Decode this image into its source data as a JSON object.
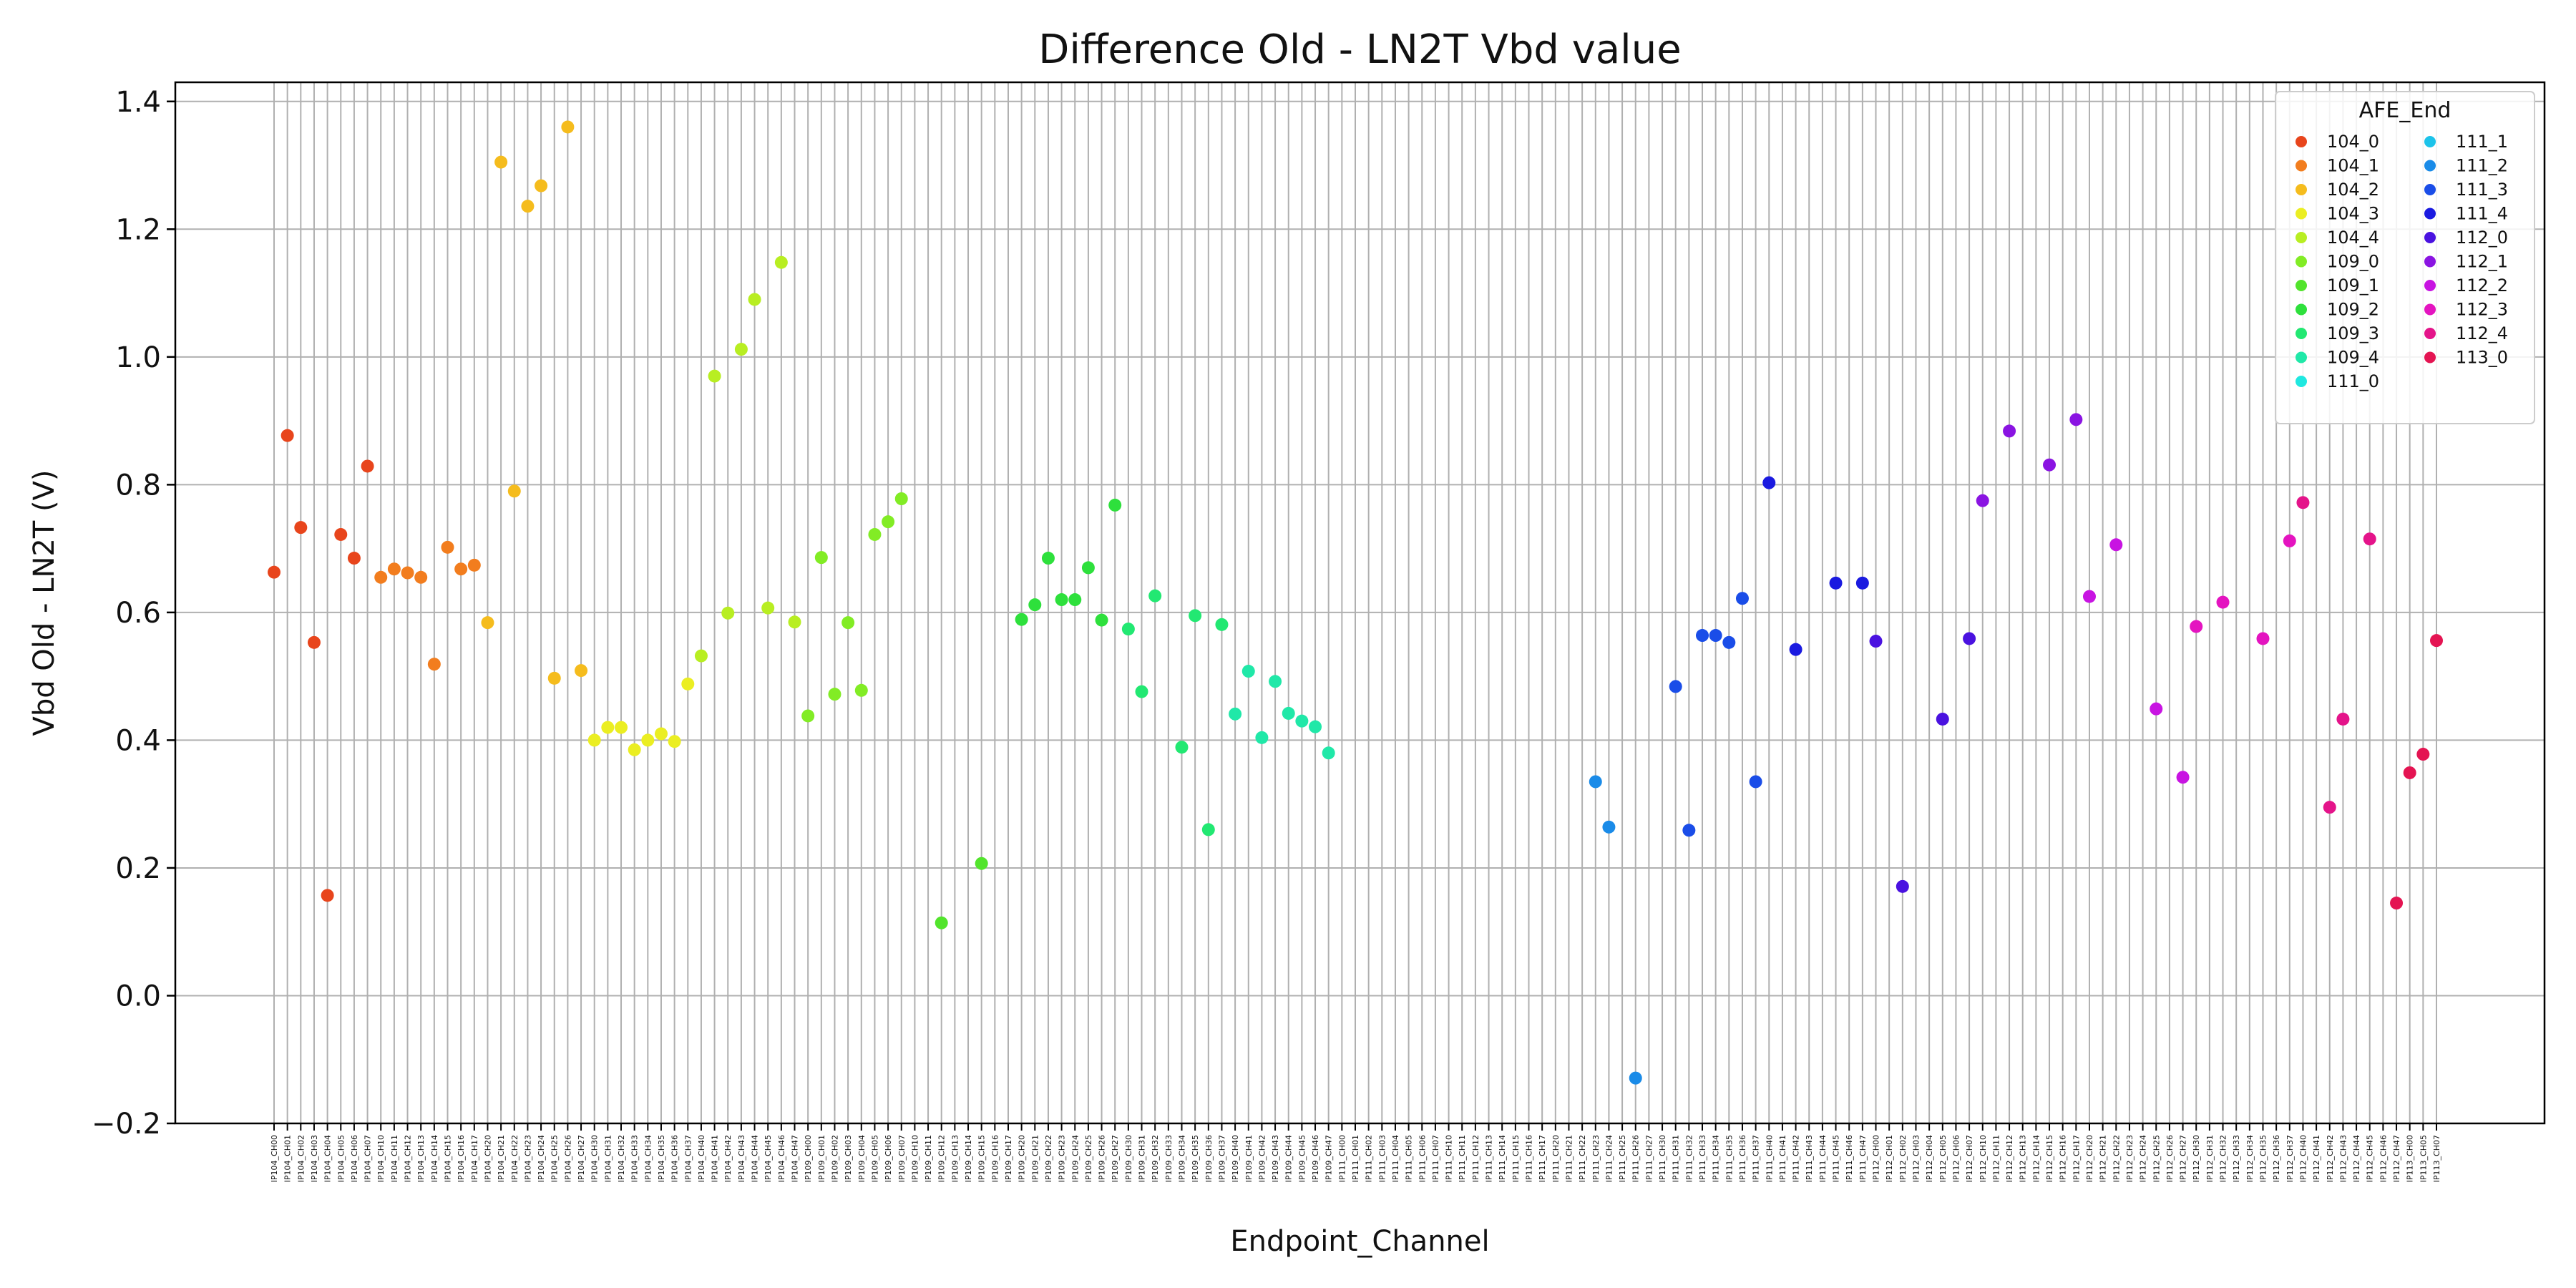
{
  "chart_data": {
    "type": "scatter",
    "title": "Difference Old - LN2T Vbd value",
    "xlabel": "Endpoint_Channel",
    "ylabel": "Vbd Old - LN2T (V)",
    "ylim": [
      -0.2,
      1.43
    ],
    "yticks": [
      "−0.2",
      "0.0",
      "0.2",
      "0.4",
      "0.6",
      "0.8",
      "1.0",
      "1.2",
      "1.4"
    ],
    "ytick_values": [
      -0.2,
      0.0,
      0.2,
      0.4,
      0.6,
      0.8,
      1.0,
      1.2,
      1.4
    ],
    "grid": true,
    "legend": {
      "title": "AFE_End",
      "placement": "top-right",
      "columns": 2
    },
    "categories": [
      "IP104_CH00",
      "IP104_CH01",
      "IP104_CH02",
      "IP104_CH03",
      "IP104_CH04",
      "IP104_CH05",
      "IP104_CH06",
      "IP104_CH07",
      "IP104_CH10",
      "IP104_CH11",
      "IP104_CH12",
      "IP104_CH13",
      "IP104_CH14",
      "IP104_CH15",
      "IP104_CH16",
      "IP104_CH17",
      "IP104_CH20",
      "IP104_CH21",
      "IP104_CH22",
      "IP104_CH23",
      "IP104_CH24",
      "IP104_CH25",
      "IP104_CH26",
      "IP104_CH27",
      "IP104_CH30",
      "IP104_CH31",
      "IP104_CH32",
      "IP104_CH33",
      "IP104_CH34",
      "IP104_CH35",
      "IP104_CH36",
      "IP104_CH37",
      "IP104_CH40",
      "IP104_CH41",
      "IP104_CH42",
      "IP104_CH43",
      "IP104_CH44",
      "IP104_CH45",
      "IP104_CH46",
      "IP104_CH47",
      "IP109_CH00",
      "IP109_CH01",
      "IP109_CH02",
      "IP109_CH03",
      "IP109_CH04",
      "IP109_CH05",
      "IP109_CH06",
      "IP109_CH07",
      "IP109_CH10",
      "IP109_CH11",
      "IP109_CH12",
      "IP109_CH13",
      "IP109_CH14",
      "IP109_CH15",
      "IP109_CH16",
      "IP109_CH17",
      "IP109_CH20",
      "IP109_CH21",
      "IP109_CH22",
      "IP109_CH23",
      "IP109_CH24",
      "IP109_CH25",
      "IP109_CH26",
      "IP109_CH27",
      "IP109_CH30",
      "IP109_CH31",
      "IP109_CH32",
      "IP109_CH33",
      "IP109_CH34",
      "IP109_CH35",
      "IP109_CH36",
      "IP109_CH37",
      "IP109_CH40",
      "IP109_CH41",
      "IP109_CH42",
      "IP109_CH43",
      "IP109_CH44",
      "IP109_CH45",
      "IP109_CH46",
      "IP109_CH47",
      "IP111_CH00",
      "IP111_CH01",
      "IP111_CH02",
      "IP111_CH03",
      "IP111_CH04",
      "IP111_CH05",
      "IP111_CH06",
      "IP111_CH07",
      "IP111_CH10",
      "IP111_CH11",
      "IP111_CH12",
      "IP111_CH13",
      "IP111_CH14",
      "IP111_CH15",
      "IP111_CH16",
      "IP111_CH17",
      "IP111_CH20",
      "IP111_CH21",
      "IP111_CH22",
      "IP111_CH23",
      "IP111_CH24",
      "IP111_CH25",
      "IP111_CH26",
      "IP111_CH27",
      "IP111_CH30",
      "IP111_CH31",
      "IP111_CH32",
      "IP111_CH33",
      "IP111_CH34",
      "IP111_CH35",
      "IP111_CH36",
      "IP111_CH37",
      "IP111_CH40",
      "IP111_CH41",
      "IP111_CH42",
      "IP111_CH43",
      "IP111_CH44",
      "IP111_CH45",
      "IP111_CH46",
      "IP111_CH47",
      "IP112_CH00",
      "IP112_CH01",
      "IP112_CH02",
      "IP112_CH03",
      "IP112_CH04",
      "IP112_CH05",
      "IP112_CH06",
      "IP112_CH07",
      "IP112_CH10",
      "IP112_CH11",
      "IP112_CH12",
      "IP112_CH13",
      "IP112_CH14",
      "IP112_CH15",
      "IP112_CH16",
      "IP112_CH17",
      "IP112_CH20",
      "IP112_CH21",
      "IP112_CH22",
      "IP112_CH23",
      "IP112_CH24",
      "IP112_CH25",
      "IP112_CH26",
      "IP112_CH27",
      "IP112_CH30",
      "IP112_CH31",
      "IP112_CH32",
      "IP112_CH33",
      "IP112_CH34",
      "IP112_CH35",
      "IP112_CH36",
      "IP112_CH37",
      "IP112_CH40",
      "IP112_CH41",
      "IP112_CH42",
      "IP112_CH43",
      "IP112_CH44",
      "IP112_CH45",
      "IP112_CH46",
      "IP112_CH47",
      "IP113_CH00",
      "IP113_CH05",
      "IP113_CH07"
    ],
    "series": [
      {
        "name": "104_0",
        "color": "#e8451c",
        "points": [
          {
            "x": "IP104_CH00",
            "y": 0.663
          },
          {
            "x": "IP104_CH01",
            "y": 0.877
          },
          {
            "x": "IP104_CH02",
            "y": 0.733
          },
          {
            "x": "IP104_CH03",
            "y": 0.553
          },
          {
            "x": "IP104_CH04",
            "y": 0.157
          },
          {
            "x": "IP104_CH05",
            "y": 0.722
          },
          {
            "x": "IP104_CH06",
            "y": 0.685
          },
          {
            "x": "IP104_CH07",
            "y": 0.829
          }
        ]
      },
      {
        "name": "104_1",
        "color": "#f27d1e",
        "points": [
          {
            "x": "IP104_CH10",
            "y": 0.655
          },
          {
            "x": "IP104_CH11",
            "y": 0.668
          },
          {
            "x": "IP104_CH12",
            "y": 0.662
          },
          {
            "x": "IP104_CH13",
            "y": 0.655
          },
          {
            "x": "IP104_CH14",
            "y": 0.519
          },
          {
            "x": "IP104_CH15",
            "y": 0.702
          },
          {
            "x": "IP104_CH16",
            "y": 0.668
          },
          {
            "x": "IP104_CH17",
            "y": 0.674
          }
        ]
      },
      {
        "name": "104_2",
        "color": "#f5bc1d",
        "points": [
          {
            "x": "IP104_CH20",
            "y": 0.584
          },
          {
            "x": "IP104_CH21",
            "y": 1.305
          },
          {
            "x": "IP104_CH22",
            "y": 0.79
          },
          {
            "x": "IP104_CH23",
            "y": 1.236
          },
          {
            "x": "IP104_CH24",
            "y": 1.268
          },
          {
            "x": "IP104_CH25",
            "y": 0.497
          },
          {
            "x": "IP104_CH26",
            "y": 1.36
          },
          {
            "x": "IP104_CH27",
            "y": 0.509
          }
        ]
      },
      {
        "name": "104_3",
        "color": "#ebee22",
        "points": [
          {
            "x": "IP104_CH30",
            "y": 0.4
          },
          {
            "x": "IP104_CH31",
            "y": 0.42
          },
          {
            "x": "IP104_CH32",
            "y": 0.42
          },
          {
            "x": "IP104_CH33",
            "y": 0.385
          },
          {
            "x": "IP104_CH34",
            "y": 0.4
          },
          {
            "x": "IP104_CH35",
            "y": 0.41
          },
          {
            "x": "IP104_CH36",
            "y": 0.398
          },
          {
            "x": "IP104_CH37",
            "y": 0.488
          }
        ]
      },
      {
        "name": "104_4",
        "color": "#b8ee22",
        "points": [
          {
            "x": "IP104_CH40",
            "y": 0.532
          },
          {
            "x": "IP104_CH41",
            "y": 0.97
          },
          {
            "x": "IP104_CH42",
            "y": 0.599
          },
          {
            "x": "IP104_CH43",
            "y": 1.012
          },
          {
            "x": "IP104_CH44",
            "y": 1.09
          },
          {
            "x": "IP104_CH45",
            "y": 0.607
          },
          {
            "x": "IP104_CH46",
            "y": 1.148
          },
          {
            "x": "IP104_CH47",
            "y": 0.585
          }
        ]
      },
      {
        "name": "109_0",
        "color": "#82ec25",
        "points": [
          {
            "x": "IP109_CH00",
            "y": 0.438
          },
          {
            "x": "IP109_CH01",
            "y": 0.686
          },
          {
            "x": "IP109_CH02",
            "y": 0.472
          },
          {
            "x": "IP109_CH03",
            "y": 0.584
          },
          {
            "x": "IP109_CH04",
            "y": 0.478
          },
          {
            "x": "IP109_CH05",
            "y": 0.722
          },
          {
            "x": "IP109_CH06",
            "y": 0.742
          },
          {
            "x": "IP109_CH07",
            "y": 0.778
          }
        ]
      },
      {
        "name": "109_1",
        "color": "#52e42c",
        "points": [
          {
            "x": "IP109_CH12",
            "y": 0.114
          },
          {
            "x": "IP109_CH15",
            "y": 0.207
          }
        ]
      },
      {
        "name": "109_2",
        "color": "#2ee03c",
        "points": [
          {
            "x": "IP109_CH20",
            "y": 0.589
          },
          {
            "x": "IP109_CH21",
            "y": 0.612
          },
          {
            "x": "IP109_CH22",
            "y": 0.685
          },
          {
            "x": "IP109_CH23",
            "y": 0.62
          },
          {
            "x": "IP109_CH24",
            "y": 0.62
          },
          {
            "x": "IP109_CH25",
            "y": 0.67
          },
          {
            "x": "IP109_CH26",
            "y": 0.588
          },
          {
            "x": "IP109_CH27",
            "y": 0.768
          }
        ]
      },
      {
        "name": "109_3",
        "color": "#22e872",
        "points": [
          {
            "x": "IP109_CH30",
            "y": 0.574
          },
          {
            "x": "IP109_CH31",
            "y": 0.476
          },
          {
            "x": "IP109_CH32",
            "y": 0.626
          },
          {
            "x": "IP109_CH34",
            "y": 0.389
          },
          {
            "x": "IP109_CH35",
            "y": 0.595
          },
          {
            "x": "IP109_CH36",
            "y": 0.26
          },
          {
            "x": "IP109_CH37",
            "y": 0.581
          }
        ]
      },
      {
        "name": "109_4",
        "color": "#20e8a8",
        "points": [
          {
            "x": "IP109_CH40",
            "y": 0.441
          },
          {
            "x": "IP109_CH41",
            "y": 0.508
          },
          {
            "x": "IP109_CH42",
            "y": 0.404
          },
          {
            "x": "IP109_CH43",
            "y": 0.492
          },
          {
            "x": "IP109_CH44",
            "y": 0.442
          },
          {
            "x": "IP109_CH45",
            "y": 0.43
          },
          {
            "x": "IP109_CH46",
            "y": 0.421
          },
          {
            "x": "IP109_CH47",
            "y": 0.38
          }
        ]
      },
      {
        "name": "111_0",
        "color": "#1fe8e0",
        "points": []
      },
      {
        "name": "111_1",
        "color": "#1cc3ea",
        "points": []
      },
      {
        "name": "111_2",
        "color": "#1a8be8",
        "points": [
          {
            "x": "IP111_CH23",
            "y": 0.335
          },
          {
            "x": "IP111_CH24",
            "y": 0.264
          },
          {
            "x": "IP111_CH26",
            "y": -0.129
          }
        ]
      },
      {
        "name": "111_3",
        "color": "#1a4de8",
        "points": [
          {
            "x": "IP111_CH31",
            "y": 0.484
          },
          {
            "x": "IP111_CH32",
            "y": 0.259
          },
          {
            "x": "IP111_CH33",
            "y": 0.564
          },
          {
            "x": "IP111_CH34",
            "y": 0.564
          },
          {
            "x": "IP111_CH35",
            "y": 0.553
          },
          {
            "x": "IP111_CH36",
            "y": 0.622
          },
          {
            "x": "IP111_CH37",
            "y": 0.335
          }
        ]
      },
      {
        "name": "111_4",
        "color": "#1a1ae0",
        "points": [
          {
            "x": "IP111_CH40",
            "y": 0.803
          },
          {
            "x": "IP111_CH42",
            "y": 0.542
          },
          {
            "x": "IP111_CH45",
            "y": 0.646
          },
          {
            "x": "IP111_CH47",
            "y": 0.646
          }
        ]
      },
      {
        "name": "112_0",
        "color": "#4a12e0",
        "points": [
          {
            "x": "IP112_CH00",
            "y": 0.555
          },
          {
            "x": "IP112_CH02",
            "y": 0.171
          },
          {
            "x": "IP112_CH05",
            "y": 0.433
          },
          {
            "x": "IP112_CH07",
            "y": 0.559
          }
        ]
      },
      {
        "name": "112_1",
        "color": "#8a14e2",
        "points": [
          {
            "x": "IP112_CH10",
            "y": 0.775
          },
          {
            "x": "IP112_CH12",
            "y": 0.884
          },
          {
            "x": "IP112_CH15",
            "y": 0.831
          },
          {
            "x": "IP112_CH17",
            "y": 0.902
          }
        ]
      },
      {
        "name": "112_2",
        "color": "#c814e2",
        "points": [
          {
            "x": "IP112_CH20",
            "y": 0.625
          },
          {
            "x": "IP112_CH22",
            "y": 0.706
          },
          {
            "x": "IP112_CH25",
            "y": 0.449
          },
          {
            "x": "IP112_CH27",
            "y": 0.342
          }
        ]
      },
      {
        "name": "112_3",
        "color": "#e414c0",
        "points": [
          {
            "x": "IP112_CH30",
            "y": 0.578
          },
          {
            "x": "IP112_CH32",
            "y": 0.616
          },
          {
            "x": "IP112_CH35",
            "y": 0.559
          },
          {
            "x": "IP112_CH37",
            "y": 0.712
          }
        ]
      },
      {
        "name": "112_4",
        "color": "#e4148a",
        "points": [
          {
            "x": "IP112_CH40",
            "y": 0.772
          },
          {
            "x": "IP112_CH42",
            "y": 0.295
          },
          {
            "x": "IP112_CH43",
            "y": 0.433
          },
          {
            "x": "IP112_CH45",
            "y": 0.715
          }
        ]
      },
      {
        "name": "113_0",
        "color": "#e41452",
        "points": [
          {
            "x": "IP112_CH47",
            "y": 0.145
          },
          {
            "x": "IP113_CH00",
            "y": 0.349
          },
          {
            "x": "IP113_CH05",
            "y": 0.378
          },
          {
            "x": "IP113_CH07",
            "y": 0.556
          }
        ]
      }
    ]
  }
}
